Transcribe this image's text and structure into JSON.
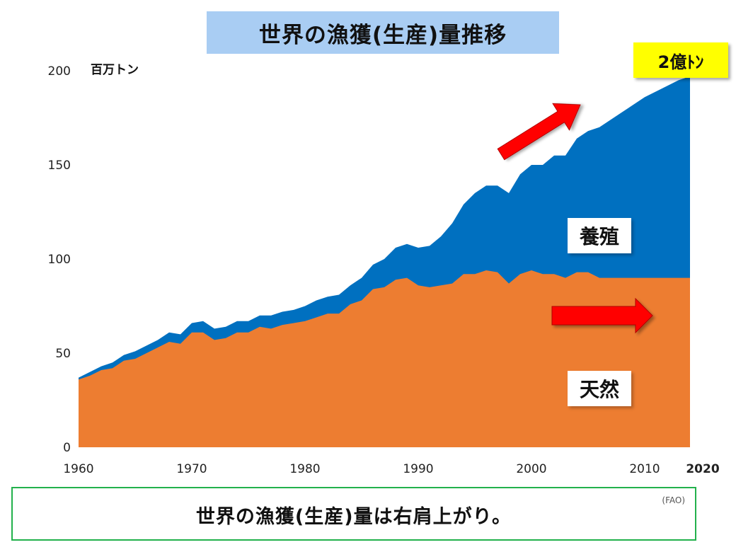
{
  "chart_data": {
    "type": "area",
    "title": "世界の漁獲(生産)量推移",
    "ylabel": "百万トン",
    "xlim": [
      1960,
      2014
    ],
    "ylim": [
      0,
      200
    ],
    "y_ticks": [
      "0",
      "50",
      "100",
      "150",
      "200"
    ],
    "x_ticks": [
      "1960",
      "1970",
      "1980",
      "1990",
      "2000",
      "2010",
      "2020"
    ],
    "x": [
      1960,
      1961,
      1962,
      1963,
      1964,
      1965,
      1966,
      1967,
      1968,
      1969,
      1970,
      1971,
      1972,
      1973,
      1974,
      1975,
      1976,
      1977,
      1978,
      1979,
      1980,
      1981,
      1982,
      1983,
      1984,
      1985,
      1986,
      1987,
      1988,
      1989,
      1990,
      1991,
      1992,
      1993,
      1994,
      1995,
      1996,
      1997,
      1998,
      1999,
      2000,
      2001,
      2002,
      2003,
      2004,
      2005,
      2006,
      2007,
      2008,
      2009,
      2010,
      2011,
      2012,
      2013,
      2014
    ],
    "series": [
      {
        "name": "天然",
        "color": "#ed7d31",
        "values": [
          36,
          38,
          41,
          42,
          46,
          47,
          50,
          53,
          56,
          55,
          61,
          61,
          57,
          58,
          61,
          61,
          64,
          63,
          65,
          66,
          67,
          69,
          71,
          71,
          76,
          78,
          84,
          85,
          89,
          90,
          86,
          85,
          86,
          87,
          92,
          92,
          94,
          93,
          87,
          92,
          94,
          92,
          92,
          90,
          93,
          93,
          90,
          90,
          90,
          90,
          90,
          90,
          90,
          90,
          90
        ]
      },
      {
        "name": "養殖",
        "color": "#0070c0",
        "values": [
          1,
          2,
          2,
          3,
          3,
          4,
          4,
          4,
          5,
          5,
          5,
          6,
          6,
          6,
          6,
          6,
          6,
          7,
          7,
          7,
          8,
          9,
          9,
          10,
          10,
          12,
          13,
          15,
          17,
          18,
          20,
          22,
          26,
          32,
          37,
          43,
          45,
          46,
          48,
          53,
          56,
          58,
          63,
          65,
          71,
          75,
          80,
          84,
          88,
          92,
          96,
          99,
          102,
          105,
          107
        ]
      }
    ],
    "labels": {
      "aquaculture": "養殖",
      "wild": "天然",
      "badge": "2億ﾄﾝ"
    },
    "caption": "世界の漁獲(生産)量は右肩上がり。",
    "source": "(FAO)",
    "grid": false,
    "legend": "none",
    "arrow_color": "#ff0000"
  }
}
